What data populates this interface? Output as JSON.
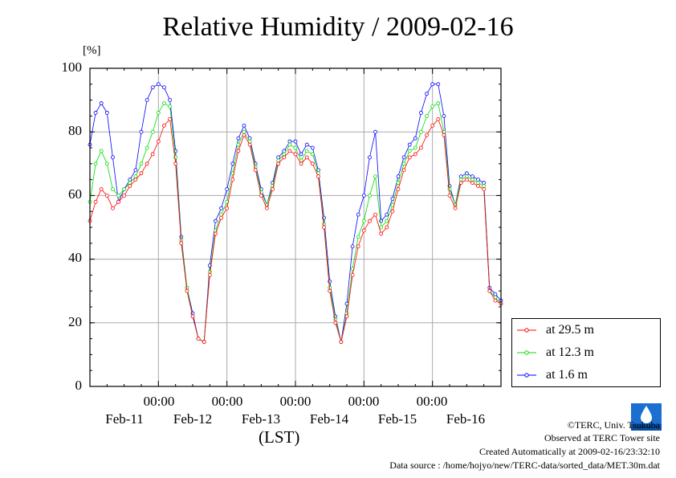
{
  "chart_data": {
    "type": "line",
    "title": "Relative Humidity / 2009-02-16",
    "ylabel": "[%]",
    "xlabel": "(LST)",
    "ylim": [
      0,
      100
    ],
    "yticks": [
      "0",
      "20",
      "40",
      "60",
      "80",
      "100"
    ],
    "x_time_labels": [
      "00:00",
      "00:00",
      "00:00",
      "00:00",
      "00:00"
    ],
    "x_day_labels": [
      "Feb-11",
      "Feb-12",
      "Feb-13",
      "Feb-14",
      "Feb-15",
      "Feb-16"
    ],
    "x_unit": "hours since first sample",
    "xlim": [
      0,
      144
    ],
    "grid": true,
    "legend_position": "right-bottom",
    "series": [
      {
        "name": "at 29.5 m",
        "color": "#ff0000",
        "x": [
          0,
          2,
          4,
          6,
          8,
          10,
          12,
          14,
          16,
          18,
          20,
          22,
          24,
          26,
          28,
          30,
          32,
          34,
          36,
          38,
          40,
          42,
          44,
          46,
          48,
          50,
          52,
          54,
          56,
          58,
          60,
          62,
          64,
          66,
          68,
          70,
          72,
          74,
          76,
          78,
          80,
          82,
          84,
          86,
          88,
          90,
          92,
          94,
          96,
          98,
          100,
          102,
          104,
          106,
          108,
          110,
          112,
          114,
          116,
          118,
          120,
          122,
          124,
          126,
          128,
          130,
          132,
          134,
          136,
          138,
          140,
          142,
          144
        ],
        "y": [
          52,
          58,
          62,
          60,
          56,
          58,
          60,
          63,
          65,
          67,
          70,
          73,
          77,
          82,
          84,
          70,
          45,
          30,
          22,
          15,
          14,
          35,
          48,
          53,
          56,
          65,
          74,
          79,
          76,
          68,
          60,
          56,
          62,
          70,
          72,
          74,
          73,
          70,
          72,
          70,
          66,
          50,
          30,
          20,
          14,
          22,
          35,
          44,
          49,
          52,
          54,
          48,
          50,
          55,
          62,
          68,
          72,
          73,
          75,
          79,
          82,
          84,
          79,
          60,
          56,
          64,
          65,
          64,
          63,
          62,
          30,
          27,
          26
        ]
      },
      {
        "name": "at 12.3 m",
        "color": "#00dd00",
        "x": [
          0,
          2,
          4,
          6,
          8,
          10,
          12,
          14,
          16,
          18,
          20,
          22,
          24,
          26,
          28,
          30,
          32,
          34,
          36,
          38,
          40,
          42,
          44,
          46,
          48,
          50,
          52,
          54,
          56,
          58,
          60,
          62,
          64,
          66,
          68,
          70,
          72,
          74,
          76,
          78,
          80,
          82,
          84,
          86,
          88,
          90,
          92,
          94,
          96,
          98,
          100,
          102,
          104,
          106,
          108,
          110,
          112,
          114,
          116,
          118,
          120,
          122,
          124,
          126,
          128,
          130,
          132,
          134,
          136,
          138,
          140,
          142,
          144
        ],
        "y": [
          58,
          70,
          74,
          70,
          62,
          60,
          62,
          64,
          66,
          70,
          75,
          80,
          86,
          89,
          88,
          72,
          46,
          31,
          22,
          15,
          14,
          36,
          49,
          54,
          58,
          67,
          76,
          80,
          77,
          69,
          61,
          57,
          63,
          71,
          73,
          76,
          75,
          71,
          74,
          73,
          67,
          51,
          31,
          21,
          14,
          23,
          37,
          47,
          52,
          60,
          66,
          50,
          52,
          57,
          64,
          70,
          74,
          75,
          80,
          85,
          88,
          89,
          80,
          62,
          57,
          65,
          66,
          65,
          64,
          63,
          30,
          28,
          26
        ]
      },
      {
        "name": "at 1.6 m",
        "color": "#0000ff",
        "x": [
          0,
          2,
          4,
          6,
          8,
          10,
          12,
          14,
          16,
          18,
          20,
          22,
          24,
          26,
          28,
          30,
          32,
          34,
          36,
          38,
          40,
          42,
          44,
          46,
          48,
          50,
          52,
          54,
          56,
          58,
          60,
          62,
          64,
          66,
          68,
          70,
          72,
          74,
          76,
          78,
          80,
          82,
          84,
          86,
          88,
          90,
          92,
          94,
          96,
          98,
          100,
          102,
          104,
          106,
          108,
          110,
          112,
          114,
          116,
          118,
          120,
          122,
          124,
          126,
          128,
          130,
          132,
          134,
          136,
          138,
          140,
          142,
          144
        ],
        "y": [
          76,
          86,
          89,
          86,
          72,
          58,
          62,
          65,
          68,
          80,
          90,
          94,
          95,
          94,
          90,
          74,
          47,
          31,
          23,
          15,
          14,
          38,
          52,
          56,
          62,
          70,
          78,
          82,
          78,
          70,
          62,
          57,
          64,
          72,
          74,
          77,
          77,
          73,
          76,
          75,
          68,
          53,
          33,
          22,
          14,
          26,
          44,
          54,
          60,
          72,
          80,
          52,
          54,
          59,
          66,
          72,
          76,
          78,
          86,
          92,
          95,
          95,
          85,
          63,
          57,
          66,
          67,
          66,
          65,
          64,
          31,
          29,
          27
        ]
      }
    ]
  },
  "footer": {
    "copyright": "©TERC, Univ. Tsukuba",
    "observed": "Observed at TERC Tower site",
    "created": "Created Automatically at 2009-02-16/23:32:10",
    "source": "Data source : /home/hojyo/new/TERC-data/sorted_data/MET.30m.dat"
  }
}
